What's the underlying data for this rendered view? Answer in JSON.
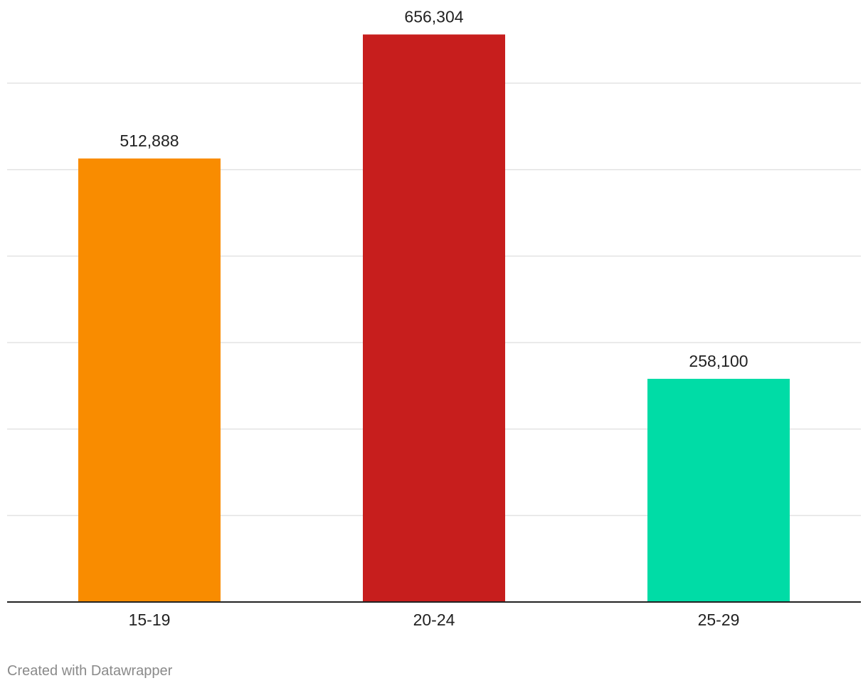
{
  "chart_data": {
    "type": "bar",
    "categories": [
      "15-19",
      "20-24",
      "25-29"
    ],
    "values": [
      512888,
      656304,
      258100
    ],
    "value_labels": [
      "512,888",
      "656,304",
      "258,100"
    ],
    "colors": [
      "#f98c00",
      "#c71e1d",
      "#00dca6"
    ],
    "ylim": [
      0,
      700000
    ],
    "grid": true,
    "gridline_values": [
      0,
      100000,
      200000,
      300000,
      400000,
      500000,
      600000
    ],
    "title": "",
    "xlabel": "",
    "ylabel": ""
  },
  "footer": {
    "credit": "Created with Datawrapper"
  }
}
